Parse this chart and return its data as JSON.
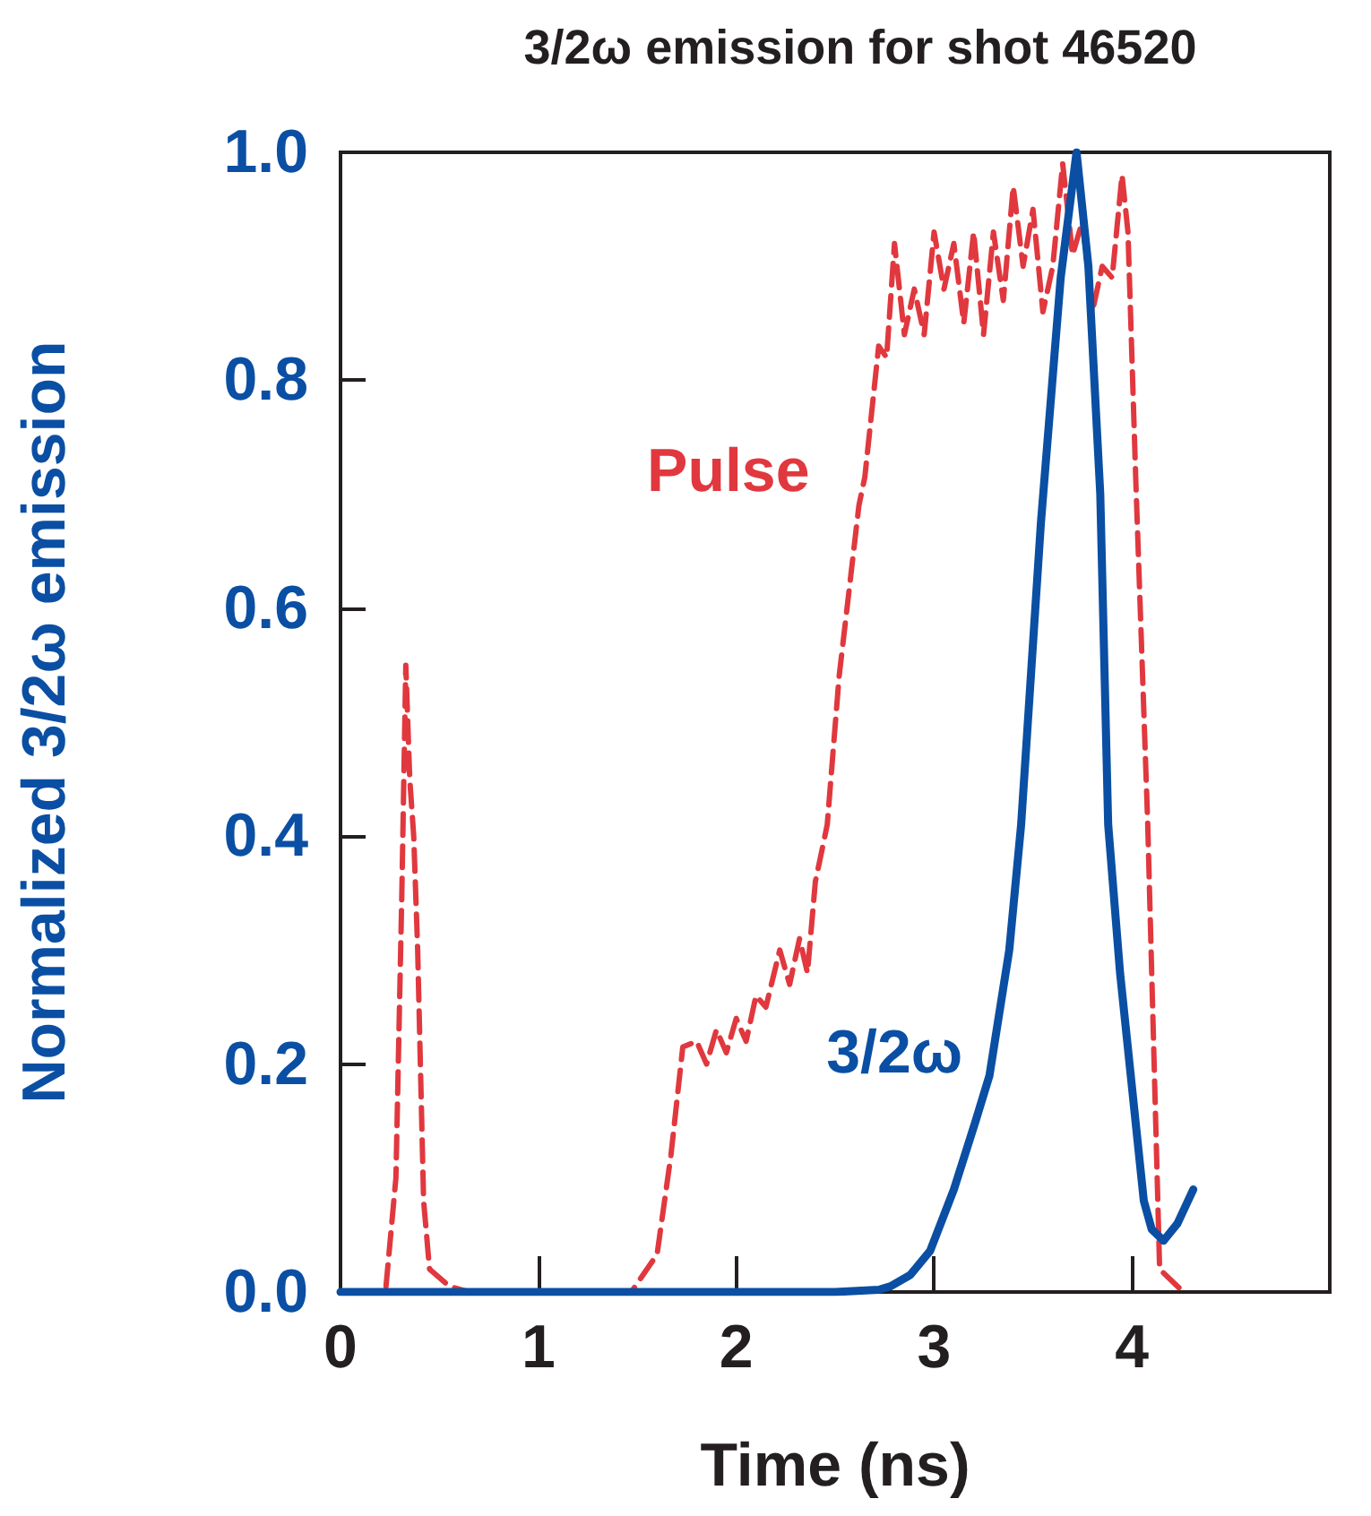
{
  "chart_data": {
    "type": "line",
    "title": "3/2ω emission for shot 46520",
    "xlabel": "Time (ns)",
    "ylabel": "Normalized 3/2ω emission",
    "xlim": [
      0,
      5
    ],
    "xticks": [
      0,
      1,
      2,
      3,
      4
    ],
    "ylim": [
      0,
      1
    ],
    "yticks": [
      {
        "value": 0,
        "label": "0.0"
      },
      0.2,
      0.4,
      0.6,
      0.8,
      {
        "value": 1,
        "label": "1.0"
      }
    ],
    "marker": "none",
    "series": [
      {
        "name": "Pulse",
        "color": "#e0383e",
        "line_style": "dashed",
        "x": [
          0.23,
          0.28,
          0.31,
          0.33,
          0.35,
          0.37,
          0.39,
          0.42,
          0.45,
          0.55,
          0.65,
          1.0,
          1.47,
          1.6,
          1.67,
          1.73,
          1.8,
          1.85,
          1.9,
          1.95,
          2.0,
          2.05,
          2.1,
          2.15,
          2.22,
          2.27,
          2.32,
          2.36,
          2.4,
          2.46,
          2.52,
          2.62,
          2.65,
          2.72,
          2.76,
          2.8,
          2.85,
          2.9,
          2.95,
          3.0,
          3.05,
          3.1,
          3.15,
          3.2,
          3.25,
          3.3,
          3.35,
          3.4,
          3.45,
          3.5,
          3.55,
          3.6,
          3.65,
          3.7,
          3.75,
          3.8,
          3.85,
          3.9,
          3.95,
          3.98,
          4.02,
          4.08,
          4.14,
          4.26
        ],
        "values": [
          0.005,
          0.1,
          0.35,
          0.55,
          0.45,
          0.4,
          0.3,
          0.08,
          0.02,
          0.005,
          0,
          0,
          0,
          0.033,
          0.12,
          0.215,
          0.22,
          0.2,
          0.23,
          0.21,
          0.24,
          0.22,
          0.26,
          0.25,
          0.3,
          0.27,
          0.31,
          0.28,
          0.36,
          0.41,
          0.54,
          0.69,
          0.715,
          0.83,
          0.82,
          0.92,
          0.84,
          0.88,
          0.84,
          0.93,
          0.88,
          0.92,
          0.85,
          0.93,
          0.84,
          0.93,
          0.87,
          0.97,
          0.9,
          0.95,
          0.86,
          0.9,
          0.99,
          0.91,
          0.94,
          0.86,
          0.9,
          0.89,
          0.98,
          0.93,
          0.71,
          0.41,
          0.02,
          0
        ]
      },
      {
        "name": "3/2ω",
        "color": "#0a4fa3",
        "line_style": "solid",
        "x": [
          0,
          1,
          2,
          2.5,
          2.72,
          2.78,
          2.88,
          2.98,
          3.1,
          3.21,
          3.28,
          3.38,
          3.44,
          3.54,
          3.64,
          3.72,
          3.78,
          3.84,
          3.88,
          3.94,
          4.0,
          4.06,
          4.1,
          4.16,
          4.23,
          4.31
        ],
        "values": [
          0,
          0,
          0,
          0,
          0.002,
          0.005,
          0.015,
          0.036,
          0.09,
          0.15,
          0.19,
          0.3,
          0.41,
          0.675,
          0.89,
          1.0,
          0.9,
          0.7,
          0.41,
          0.28,
          0.18,
          0.08,
          0.055,
          0.045,
          0.06,
          0.09
        ]
      }
    ]
  }
}
